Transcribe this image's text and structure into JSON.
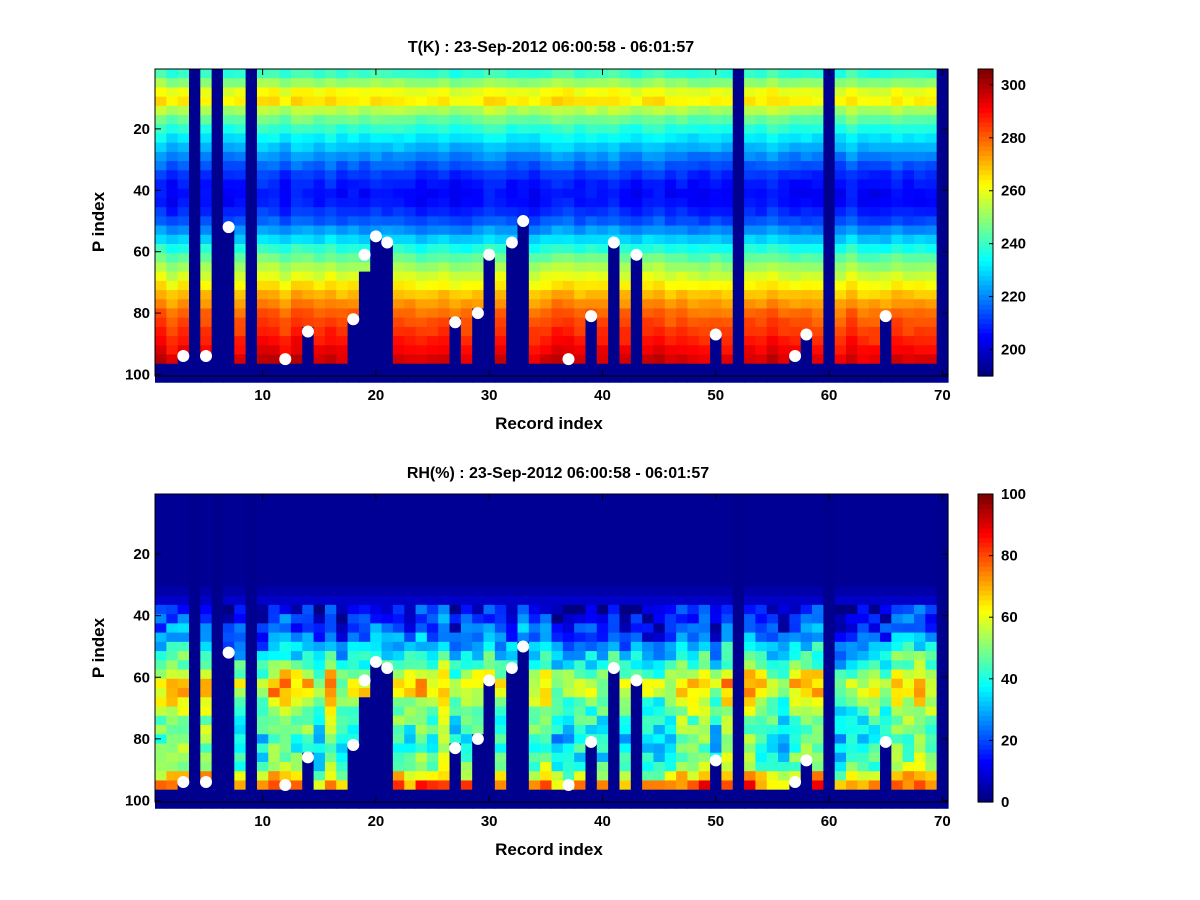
{
  "chart_data": [
    {
      "type": "heatmap",
      "title": "T(K) : 23-Sep-2012 06:00:58 - 06:01:57",
      "xlabel": "Record index",
      "ylabel": "P index",
      "xlim": [
        0.5,
        70.5
      ],
      "ylim": [
        0.5,
        100.5
      ],
      "y_reversed": true,
      "xticks": [
        10,
        20,
        30,
        40,
        50,
        60,
        70
      ],
      "yticks": [
        20,
        40,
        60,
        80,
        100
      ],
      "colormap": "jet",
      "colorbar": {
        "min": 190,
        "max": 306,
        "ticks": [
          200,
          220,
          240,
          260,
          280,
          300
        ]
      },
      "masked_columns": [
        {
          "x": 4,
          "from": 1
        },
        {
          "x": 6,
          "from": 1
        },
        {
          "x": 9,
          "from": 1
        },
        {
          "x": 52,
          "from": 1
        },
        {
          "x": 60,
          "from": 1
        },
        {
          "x": 70,
          "from": 1
        },
        {
          "x": 3,
          "from": 95
        },
        {
          "x": 5,
          "from": 95
        },
        {
          "x": 7,
          "from": 53
        },
        {
          "x": 12,
          "from": 96
        },
        {
          "x": 14,
          "from": 86
        },
        {
          "x": 18,
          "from": 82
        },
        {
          "x": 19,
          "from": 68
        },
        {
          "x": 20,
          "from": 56
        },
        {
          "x": 21,
          "from": 58
        },
        {
          "x": 27,
          "from": 83
        },
        {
          "x": 29,
          "from": 80
        },
        {
          "x": 30,
          "from": 61
        },
        {
          "x": 32,
          "from": 57
        },
        {
          "x": 33,
          "from": 50
        },
        {
          "x": 37,
          "from": 96
        },
        {
          "x": 39,
          "from": 81
        },
        {
          "x": 41,
          "from": 58
        },
        {
          "x": 43,
          "from": 62
        },
        {
          "x": 50,
          "from": 87
        },
        {
          "x": 57,
          "from": 95
        },
        {
          "x": 58,
          "from": 87
        },
        {
          "x": 65,
          "from": 81
        }
      ],
      "surface_points": {
        "x": [
          3,
          5,
          7,
          12,
          14,
          18,
          19,
          20,
          21,
          27,
          29,
          30,
          32,
          33,
          37,
          39,
          41,
          43,
          50,
          57,
          58,
          65
        ],
        "y": [
          94,
          94,
          52,
          95,
          86,
          82,
          61,
          55,
          57,
          83,
          80,
          61,
          57,
          50,
          95,
          81,
          57,
          61,
          87,
          94,
          87,
          81
        ]
      },
      "profile": {
        "p": [
          1,
          5,
          10,
          15,
          20,
          25,
          30,
          35,
          40,
          45,
          50,
          55,
          60,
          65,
          70,
          75,
          80,
          85,
          90,
          95,
          97
        ],
        "value": [
          236,
          250,
          268,
          250,
          238,
          228,
          218,
          210,
          205,
          206,
          214,
          226,
          240,
          252,
          262,
          272,
          280,
          285,
          290,
          296,
          298
        ]
      },
      "bottom_fill_from": 98
    },
    {
      "type": "heatmap",
      "title": "RH(%) : 23-Sep-2012 06:00:58 - 06:01:57",
      "xlabel": "Record index",
      "ylabel": "P index",
      "xlim": [
        0.5,
        70.5
      ],
      "ylim": [
        0.5,
        100.5
      ],
      "y_reversed": true,
      "xticks": [
        10,
        20,
        30,
        40,
        50,
        60,
        70
      ],
      "yticks": [
        20,
        40,
        60,
        80,
        100
      ],
      "colormap": "jet",
      "colorbar": {
        "min": 0,
        "max": 100,
        "ticks": [
          0,
          20,
          40,
          60,
          80,
          100
        ]
      },
      "masked_columns": [
        {
          "x": 4,
          "from": 1
        },
        {
          "x": 6,
          "from": 1
        },
        {
          "x": 9,
          "from": 1
        },
        {
          "x": 52,
          "from": 1
        },
        {
          "x": 60,
          "from": 1
        },
        {
          "x": 70,
          "from": 1
        },
        {
          "x": 3,
          "from": 95
        },
        {
          "x": 5,
          "from": 95
        },
        {
          "x": 7,
          "from": 53
        },
        {
          "x": 12,
          "from": 96
        },
        {
          "x": 14,
          "from": 86
        },
        {
          "x": 18,
          "from": 82
        },
        {
          "x": 19,
          "from": 68
        },
        {
          "x": 20,
          "from": 56
        },
        {
          "x": 21,
          "from": 58
        },
        {
          "x": 27,
          "from": 83
        },
        {
          "x": 29,
          "from": 80
        },
        {
          "x": 30,
          "from": 61
        },
        {
          "x": 32,
          "from": 57
        },
        {
          "x": 33,
          "from": 50
        },
        {
          "x": 37,
          "from": 96
        },
        {
          "x": 39,
          "from": 81
        },
        {
          "x": 41,
          "from": 58
        },
        {
          "x": 43,
          "from": 62
        },
        {
          "x": 50,
          "from": 87
        },
        {
          "x": 57,
          "from": 95
        },
        {
          "x": 58,
          "from": 87
        },
        {
          "x": 65,
          "from": 81
        }
      ],
      "surface_points": {
        "x": [
          3,
          5,
          7,
          12,
          14,
          18,
          19,
          20,
          21,
          27,
          29,
          30,
          32,
          33,
          37,
          39,
          41,
          43,
          50,
          57,
          58,
          65
        ],
        "y": [
          94,
          94,
          52,
          95,
          86,
          82,
          61,
          55,
          57,
          83,
          80,
          61,
          57,
          50,
          95,
          81,
          57,
          61,
          87,
          94,
          87,
          81
        ]
      },
      "profile": {
        "p": [
          1,
          30,
          36,
          42,
          48,
          52,
          56,
          60,
          64,
          68,
          74,
          80,
          86,
          90,
          93,
          96,
          97
        ],
        "value": [
          2,
          2,
          8,
          15,
          25,
          35,
          42,
          58,
          65,
          52,
          45,
          40,
          43,
          50,
          65,
          80,
          86
        ]
      },
      "bottom_fill_from": 98
    }
  ]
}
